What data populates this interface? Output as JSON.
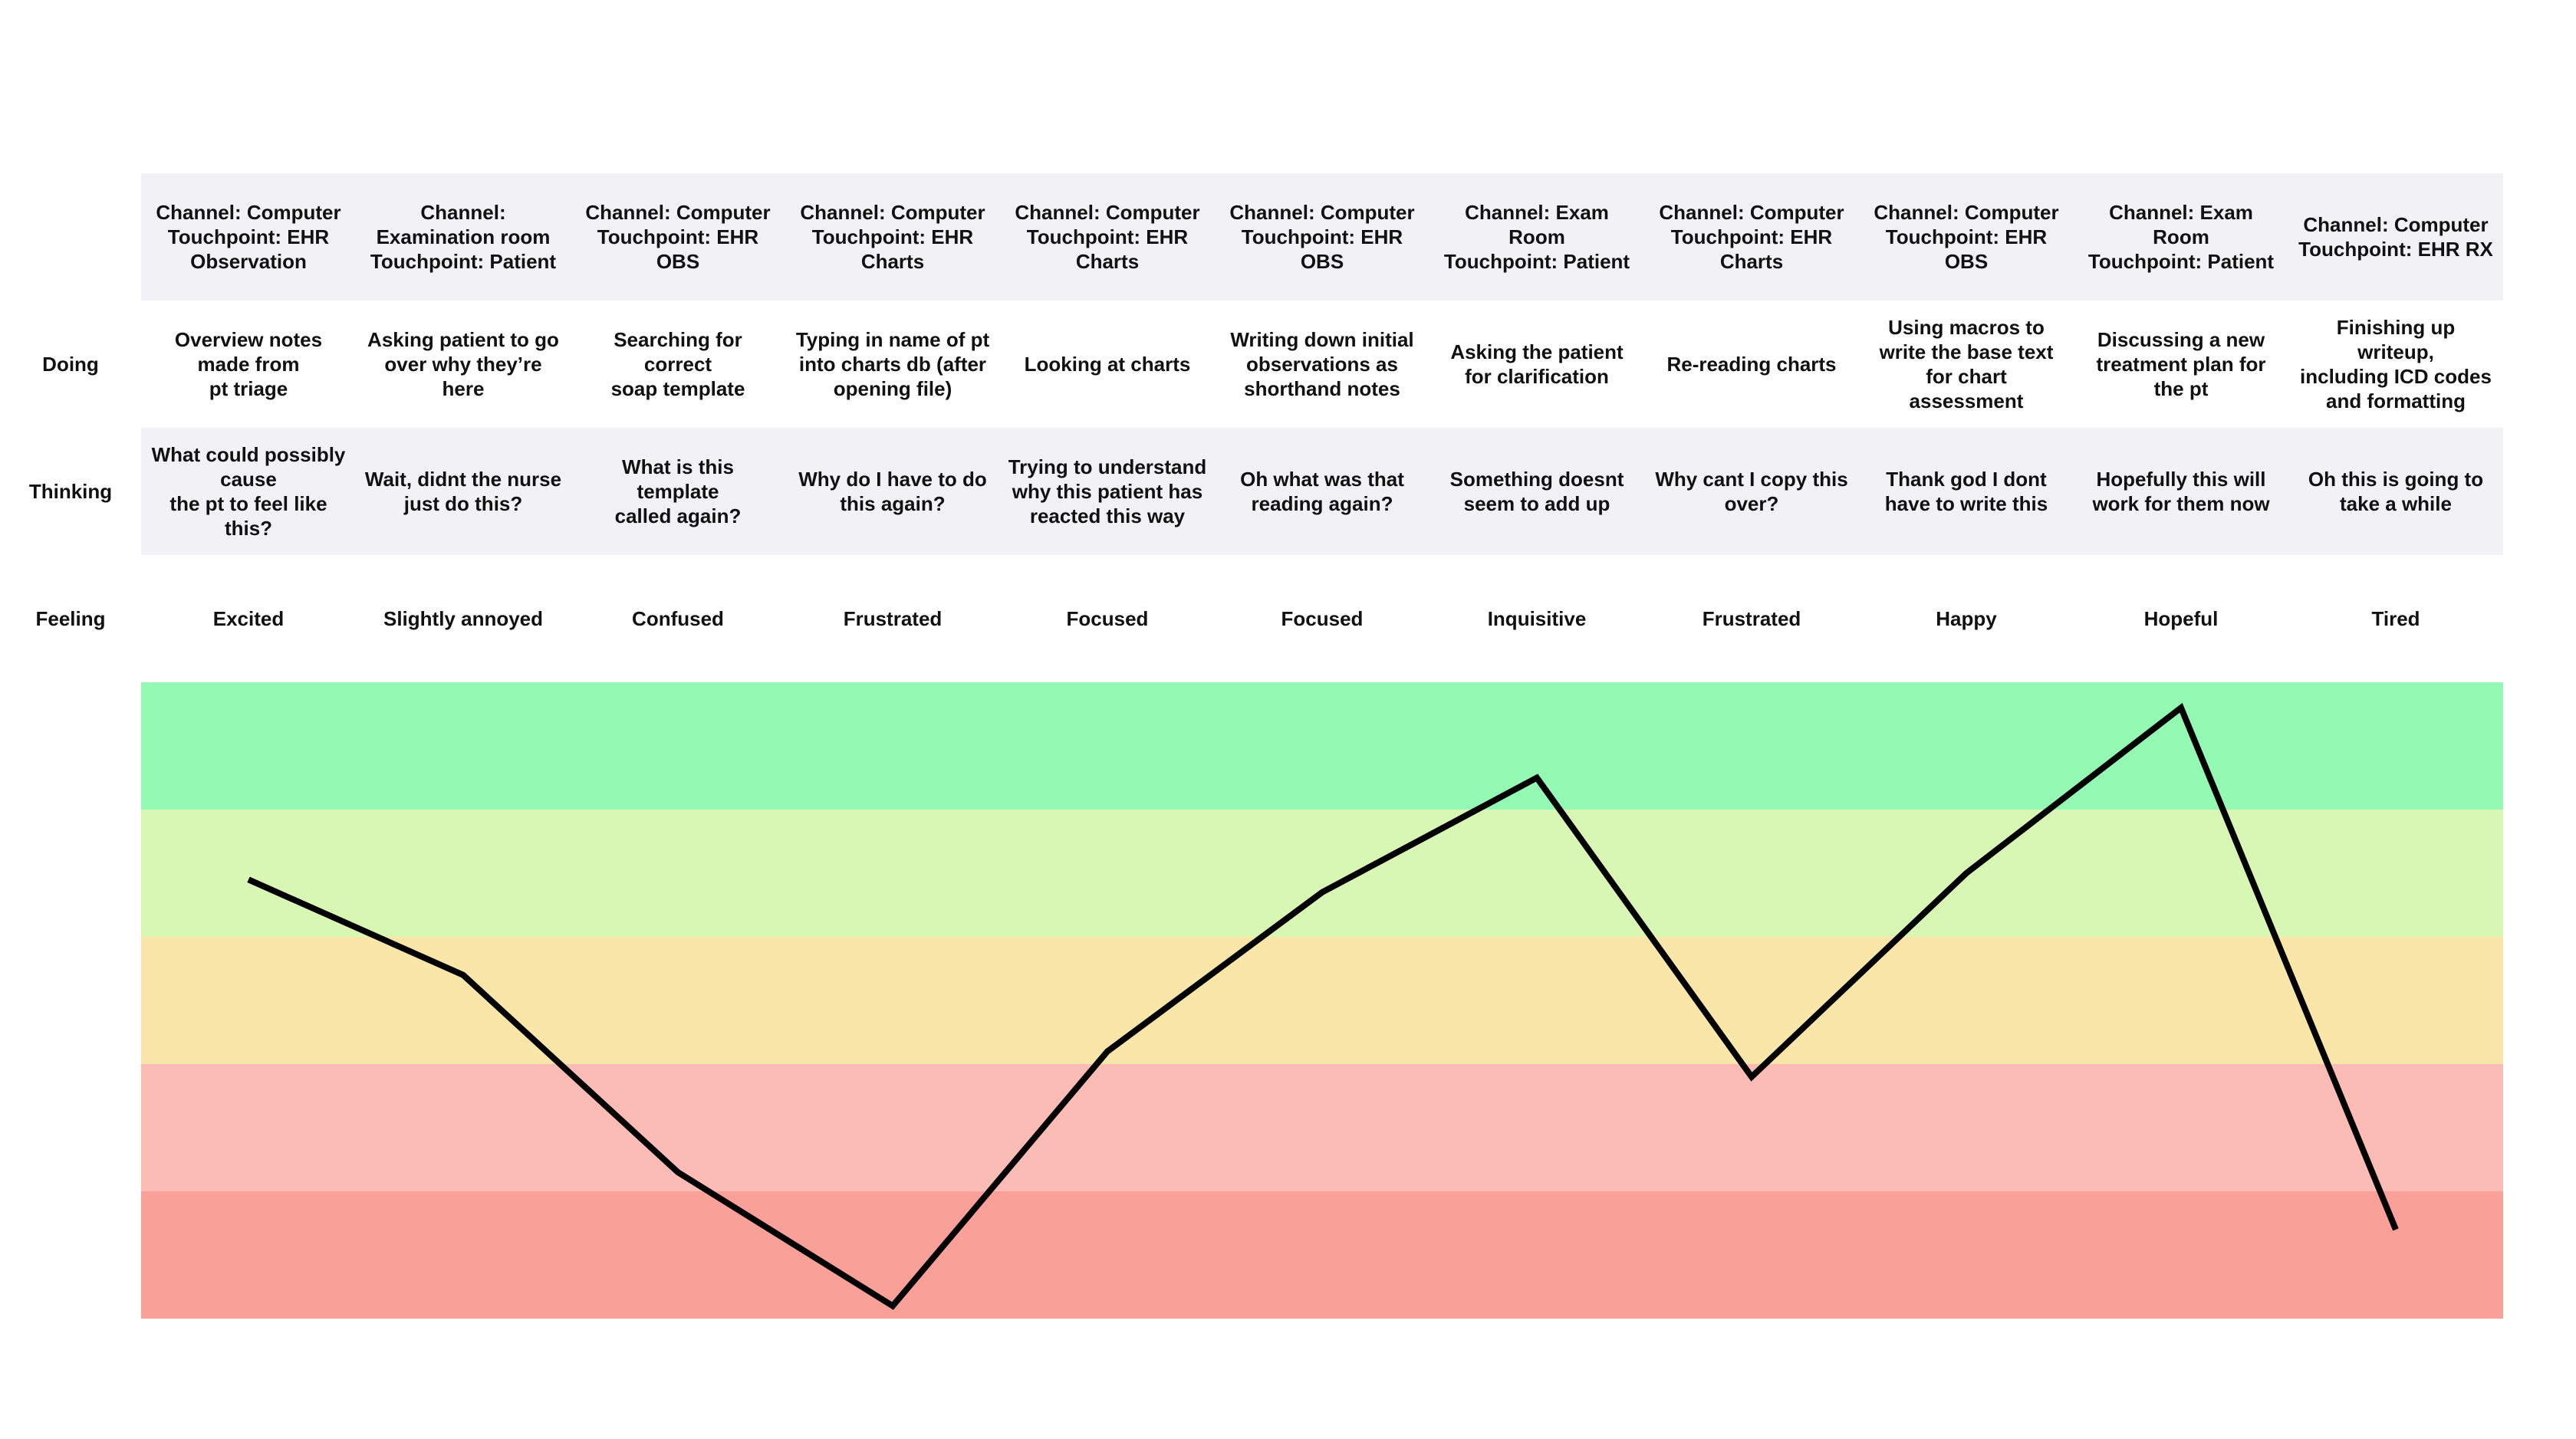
{
  "row_labels": {
    "doing": "Doing",
    "thinking": "Thinking",
    "feeling": "Feeling"
  },
  "stages": [
    {
      "channel": "Channel: Computer\nTouchpoint: EHR\nObservation",
      "doing": "Overview notes made from\npt triage",
      "thinking": "What could possibly cause\nthe pt to feel like this?",
      "feeling": "Excited"
    },
    {
      "channel": "Channel:\nExamination room\nTouchpoint: Patient",
      "doing": "Asking patient to go\nover why they’re\nhere",
      "thinking": "Wait, didnt the nurse\njust do this?",
      "feeling": "Slightly annoyed"
    },
    {
      "channel": "Channel: Computer\nTouchpoint: EHR\nOBS",
      "doing": "Searching for correct\nsoap template",
      "thinking": "What is this template\ncalled again?",
      "feeling": "Confused"
    },
    {
      "channel": "Channel: Computer\nTouchpoint: EHR\nCharts",
      "doing": "Typing in name of pt\ninto charts db (after\nopening file)",
      "thinking": "Why do I have to do\nthis again?",
      "feeling": "Frustrated"
    },
    {
      "channel": "Channel: Computer\nTouchpoint: EHR\nCharts",
      "doing": "Looking at charts",
      "thinking": "Trying to understand\nwhy this patient has\nreacted this way",
      "feeling": "Focused"
    },
    {
      "channel": "Channel: Computer\nTouchpoint: EHR\nOBS",
      "doing": "Writing down initial\nobservations as\nshorthand notes",
      "thinking": "Oh what was that\nreading again?",
      "feeling": "Focused"
    },
    {
      "channel": "Channel: Exam Room\nTouchpoint: Patient",
      "doing": "Asking the patient\nfor clarification",
      "thinking": "Something doesnt\nseem to add up",
      "feeling": "Inquisitive"
    },
    {
      "channel": "Channel: Computer\nTouchpoint: EHR\nCharts",
      "doing": "Re-reading charts",
      "thinking": "Why cant I copy this\nover?",
      "feeling": "Frustrated"
    },
    {
      "channel": "Channel: Computer\nTouchpoint: EHR\nOBS",
      "doing": "Using macros to\nwrite the base text\nfor chart assessment",
      "thinking": "Thank god I dont\nhave to write this",
      "feeling": "Happy"
    },
    {
      "channel": "Channel: Exam Room\nTouchpoint: Patient",
      "doing": "Discussing a new\ntreatment plan for\nthe pt",
      "thinking": "Hopefully this will\nwork for them now",
      "feeling": "Hopeful"
    },
    {
      "channel": "Channel: Computer\nTouchpoint: EHR RX",
      "doing": "Finishing up writeup,\nincluding ICD codes\nand formatting",
      "thinking": "Oh this is going to\ntake a while",
      "feeling": "Tired"
    }
  ],
  "emotion_curve": {
    "bands": [
      {
        "level": "very positive",
        "color": "#94f9b2"
      },
      {
        "level": "positive",
        "color": "#d8f7b4"
      },
      {
        "level": "neutral",
        "color": "#f9e6a8"
      },
      {
        "level": "negative",
        "color": "#fbbcb6"
      },
      {
        "level": "very negative",
        "color": "#f9a098"
      }
    ],
    "scale": [
      0,
      5
    ],
    "values": [
      3.45,
      2.7,
      1.15,
      0.1,
      2.1,
      3.35,
      4.25,
      1.9,
      3.5,
      4.8,
      0.7
    ],
    "line_color": "#000000"
  }
}
